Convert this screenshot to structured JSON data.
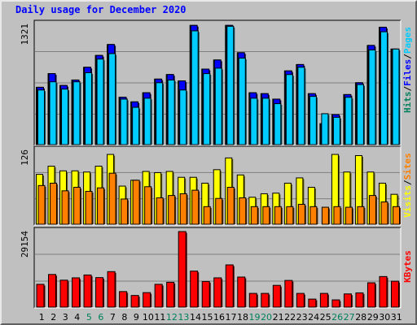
{
  "chart_data": {
    "type": "bar",
    "title": "Daily usage for December 2020",
    "categories": [
      "1",
      "2",
      "3",
      "4",
      "5",
      "6",
      "7",
      "8",
      "9",
      "10",
      "11",
      "12",
      "13",
      "14",
      "15",
      "16",
      "17",
      "18",
      "19",
      "20",
      "21",
      "22",
      "23",
      "24",
      "25",
      "26",
      "27",
      "28",
      "29",
      "30",
      "31"
    ],
    "weekend_days": [
      5,
      6,
      12,
      13,
      19,
      20,
      26,
      27
    ],
    "panels": [
      {
        "id": "hits-files-pages",
        "ymax_label": "1321",
        "ylim": [
          0,
          1321
        ],
        "series": [
          {
            "name": "Hits",
            "color": "#00805c",
            "values": [
              630,
              780,
              650,
              710,
              850,
              980,
              1100,
              520,
              470,
              570,
              720,
              770,
              700,
              1310,
              830,
              930,
              1310,
              1010,
              570,
              560,
              500,
              810,
              880,
              560,
              230,
              330,
              550,
              680,
              1090,
              1290,
              1050
            ]
          },
          {
            "name": "Files",
            "color": "#0000ff",
            "values": [
              630,
              780,
              650,
              710,
              850,
              980,
              1100,
              520,
              470,
              570,
              720,
              770,
              700,
              1310,
              830,
              930,
              1310,
              1010,
              570,
              560,
              500,
              810,
              880,
              560,
              230,
              330,
              550,
              680,
              1090,
              1290,
              1050
            ]
          },
          {
            "name": "Pages",
            "color": "#00ccff",
            "values": [
              600,
              690,
              610,
              690,
              790,
              940,
              1000,
              500,
              410,
              510,
              680,
              710,
              600,
              1250,
              780,
              840,
              1300,
              950,
              510,
              510,
              450,
              770,
              850,
              530,
              340,
              300,
              520,
              660,
              1040,
              1240,
              1050
            ]
          }
        ]
      },
      {
        "id": "visits-sites",
        "ymax_label": "126",
        "ylim": [
          0,
          126
        ],
        "series": [
          {
            "name": "Visits",
            "color": "#ffff00",
            "values": [
              85,
              99,
              91,
              91,
              89,
              99,
              119,
              65,
              75,
              90,
              88,
              90,
              80,
              80,
              70,
              93,
              113,
              84,
              46,
              52,
              53,
              70,
              79,
              63,
              0,
              119,
              89,
              117,
              89,
              70,
              51
            ]
          },
          {
            "name": "Sites",
            "color": "#ff8000",
            "values": [
              66,
              70,
              57,
              63,
              56,
              62,
              87,
              43,
              75,
              64,
              45,
              49,
              52,
              58,
              30,
              44,
              63,
              45,
              30,
              30,
              30,
              30,
              34,
              30,
              29,
              30,
              29,
              30,
              49,
              38,
              30
            ]
          }
        ]
      },
      {
        "id": "kbytes",
        "ymax_label": "29154",
        "ylim": [
          0,
          29154
        ],
        "series": [
          {
            "name": "KBytes",
            "color": "#ff0000",
            "values": [
              8800,
              12600,
              10400,
              11300,
              12400,
              11400,
              13700,
              6000,
              4500,
              5600,
              8800,
              9600,
              29154,
              13900,
              9900,
              11300,
              16300,
              11600,
              5300,
              5300,
              8400,
              10300,
              5300,
              3100,
              5300,
              2800,
              5100,
              5500,
              9400,
              11800,
              10000
            ]
          }
        ]
      }
    ]
  },
  "right_labels": {
    "top": [
      {
        "text": "Hits",
        "color": "#00805c"
      },
      {
        "text": "/",
        "color": "#000000"
      },
      {
        "text": "Files",
        "color": "#0000ff"
      },
      {
        "text": "/",
        "color": "#000000"
      },
      {
        "text": "Pages",
        "color": "#00ccff"
      }
    ],
    "middle": [
      {
        "text": "Visits",
        "color": "#ffff00"
      },
      {
        "text": "/",
        "color": "#000000"
      },
      {
        "text": "Sites",
        "color": "#ff8000"
      }
    ],
    "bottom": [
      {
        "text": "KBytes",
        "color": "#ff0000"
      }
    ]
  },
  "colors": {
    "background": "#c0c0c0",
    "plot_border_dark": "#000000",
    "plot_border_light": "#ffffff",
    "gridline": "#808080",
    "title": "#0000ff",
    "weekday_label": "#000000",
    "weekend_label": "#00805c"
  }
}
